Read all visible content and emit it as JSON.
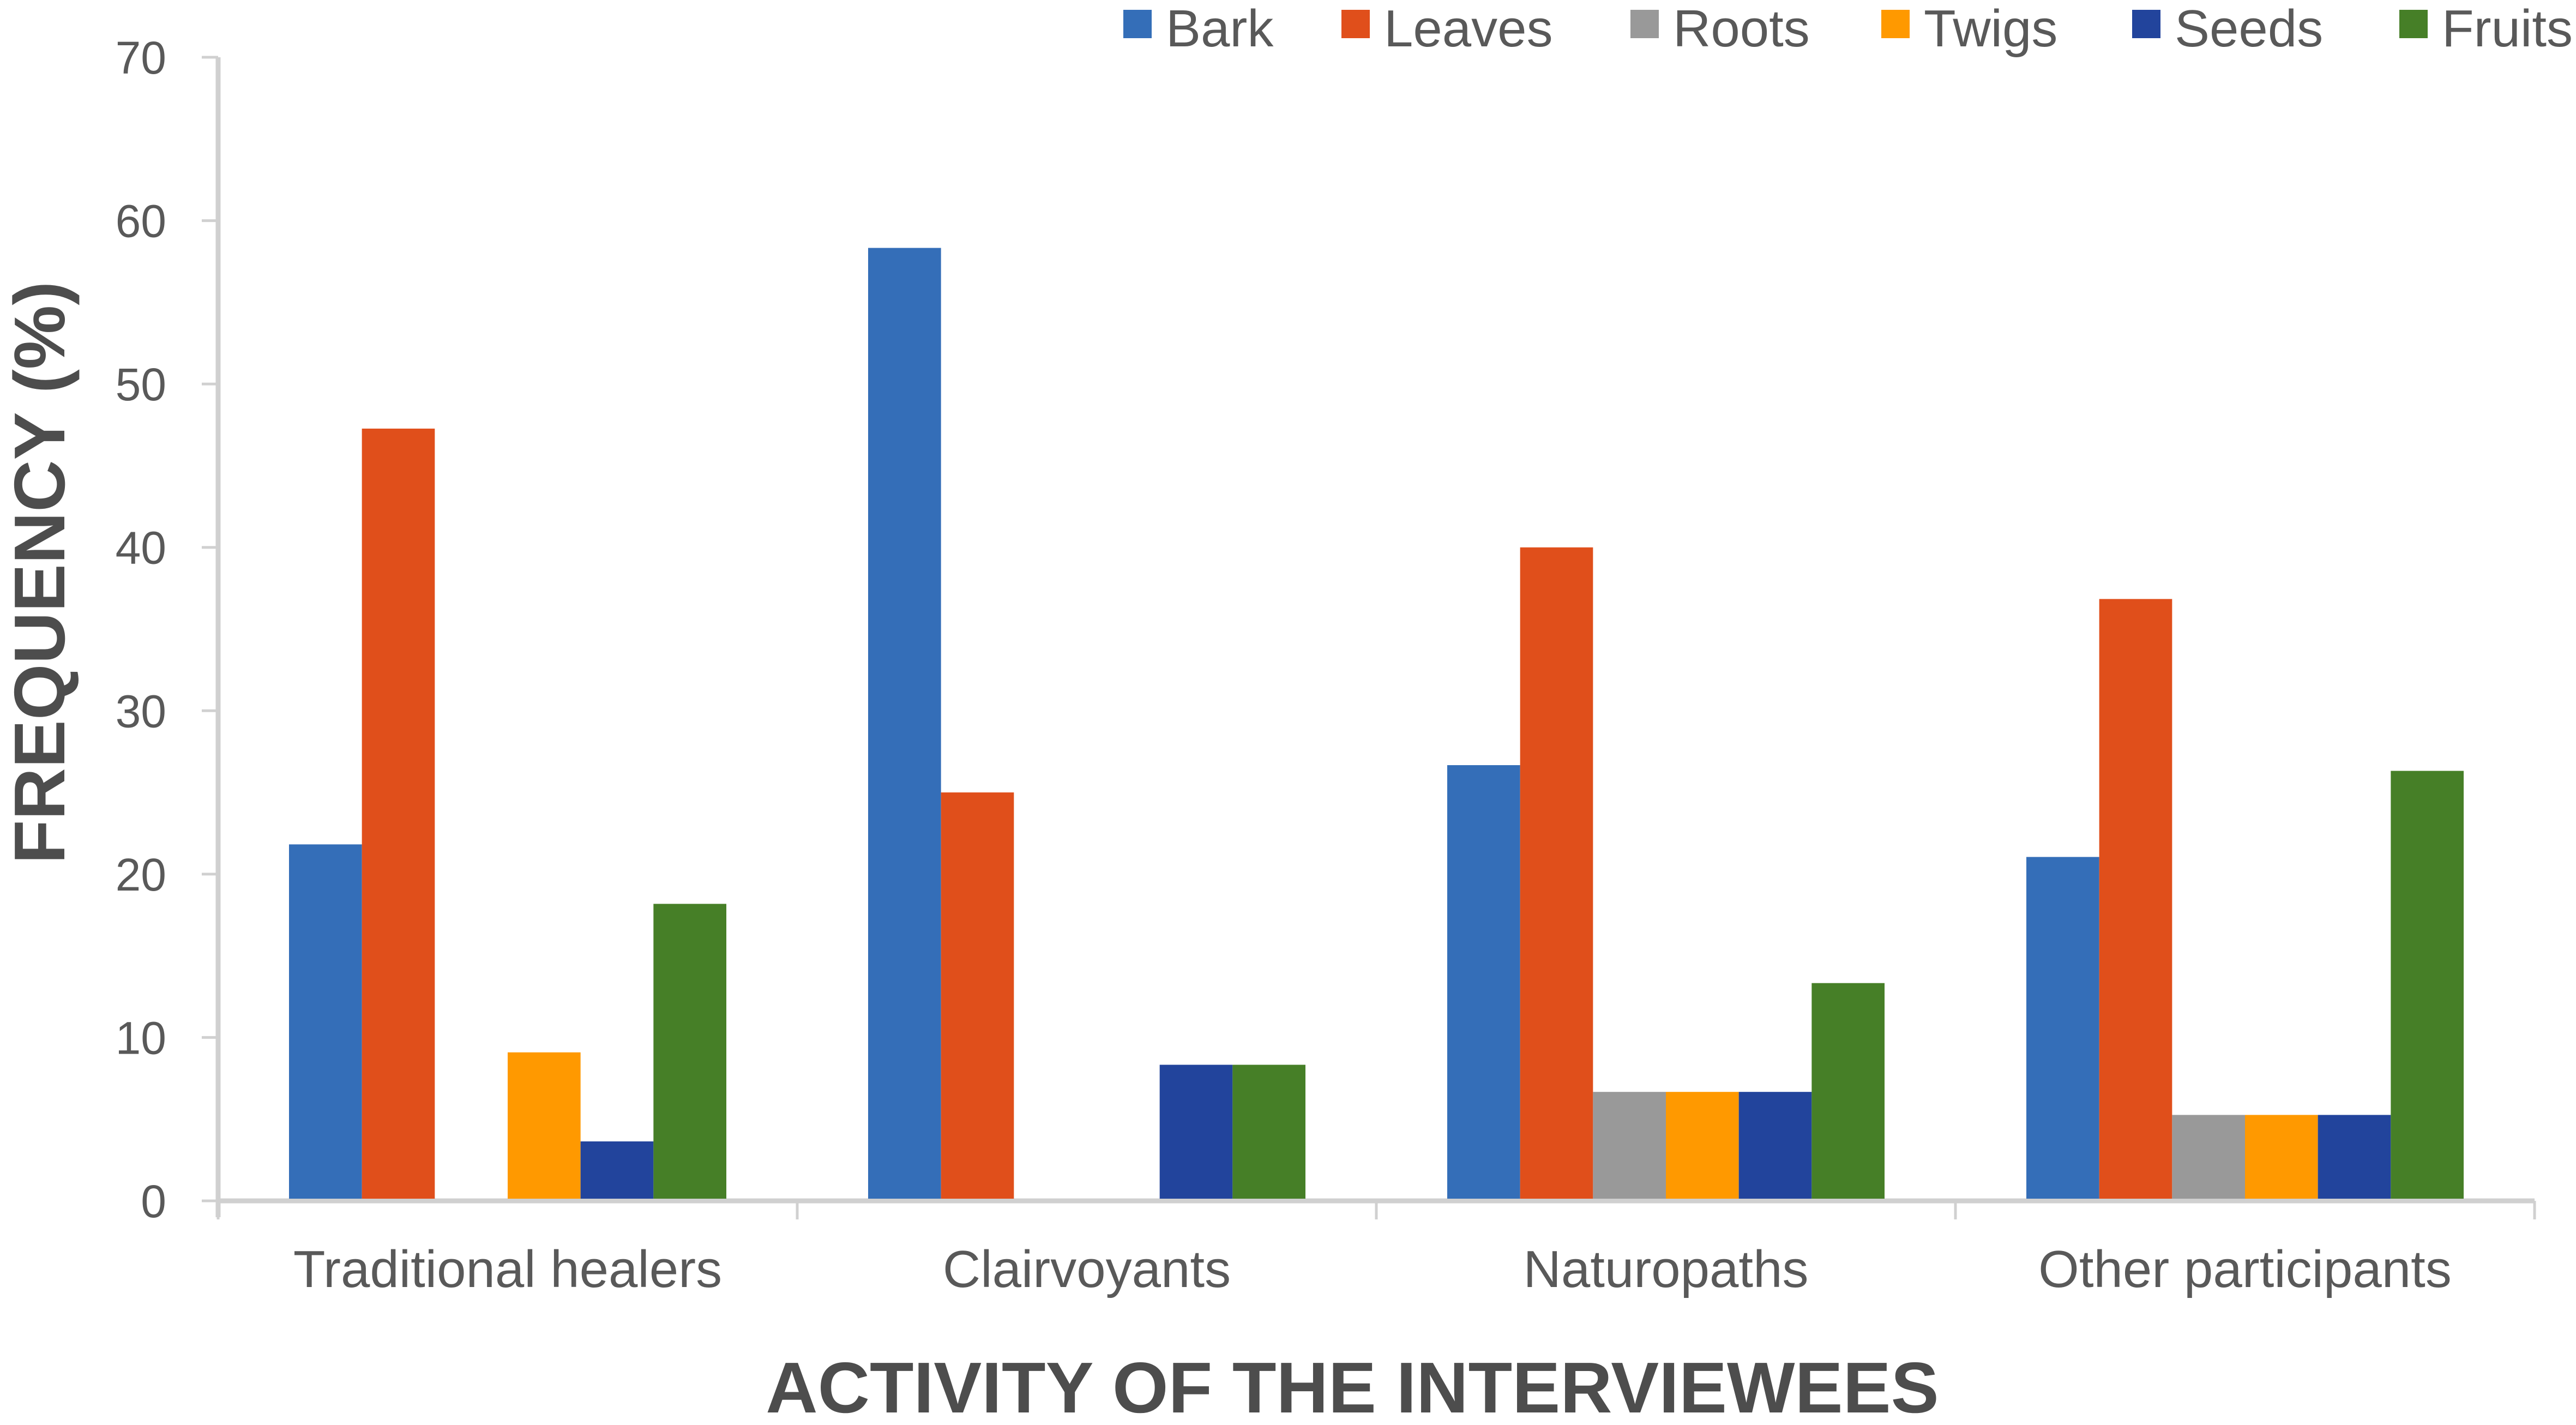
{
  "chart_data": {
    "type": "bar",
    "title": "",
    "xlabel": "ACTIVITY OF THE INTERVIEWEES",
    "ylabel": "FREQUENCY (%)",
    "ylim": [
      0,
      70
    ],
    "yticks": [
      0,
      10,
      20,
      30,
      40,
      50,
      60,
      70
    ],
    "grid": false,
    "legend_position": "top-right",
    "categories": [
      "Traditional healers",
      "Clairvoyants",
      "Naturopaths",
      "Other participants"
    ],
    "series": [
      {
        "name": "Bark",
        "color": "#346EB8",
        "values": [
          21.82,
          58.33,
          26.67,
          21.05
        ]
      },
      {
        "name": "Leaves",
        "color": "#E04F1B",
        "values": [
          47.27,
          25.0,
          40.0,
          36.84
        ]
      },
      {
        "name": "Roots",
        "color": "#999999",
        "values": [
          0,
          0,
          6.67,
          5.26
        ]
      },
      {
        "name": "Twigs",
        "color": "#FF9900",
        "values": [
          9.09,
          0,
          6.67,
          5.26
        ]
      },
      {
        "name": "Seeds",
        "color": "#22449C",
        "values": [
          3.64,
          8.33,
          6.67,
          5.26
        ]
      },
      {
        "name": "Fruits",
        "color": "#467F27",
        "values": [
          18.18,
          8.33,
          13.33,
          26.32
        ]
      }
    ]
  }
}
